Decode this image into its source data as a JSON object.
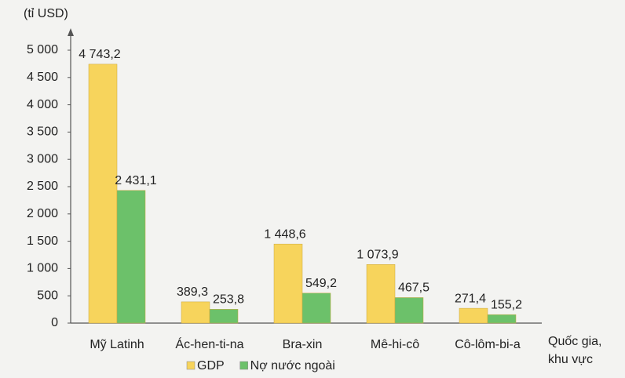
{
  "chart_data": {
    "type": "bar",
    "y_label": "(tỉ USD)",
    "x_label": [
      "Quốc gia,",
      "khu vực"
    ],
    "categories": [
      "Mỹ Latinh",
      "Ác-hen-ti-na",
      "Bra-xin",
      "Mê-hi-cô",
      "Cô-lôm-bi-a"
    ],
    "series": [
      {
        "name": "GDP",
        "color": "#f7d45c",
        "values": [
          4743.2,
          389.3,
          1448.6,
          1073.9,
          271.4
        ],
        "value_labels": [
          "4 743,2",
          "389,3",
          "1 448,6",
          "1 073,9",
          "271,4"
        ]
      },
      {
        "name": "Nợ nước ngoài",
        "color": "#6cc16a",
        "values": [
          2431.1,
          253.8,
          549.2,
          467.5,
          155.2
        ],
        "value_labels": [
          "2 431,1",
          "253,8",
          "549,2",
          "467,5",
          "155,2"
        ]
      }
    ],
    "ylim": [
      0,
      5000
    ],
    "yticks": [
      0,
      500,
      {
        "value": 1000,
        "label": "1 000"
      },
      {
        "value": 1500,
        "label": "1 500"
      },
      {
        "value": 2000,
        "label": "2 000"
      },
      {
        "value": 2500,
        "label": "2 500"
      },
      {
        "value": 3000,
        "label": "3 000"
      },
      {
        "value": 3500,
        "label": "3 500"
      },
      {
        "value": 4000,
        "label": "4 000"
      },
      {
        "value": 4500,
        "label": "4 500"
      },
      {
        "value": 5000,
        "label": "5 000"
      }
    ],
    "legend": "bottom"
  }
}
